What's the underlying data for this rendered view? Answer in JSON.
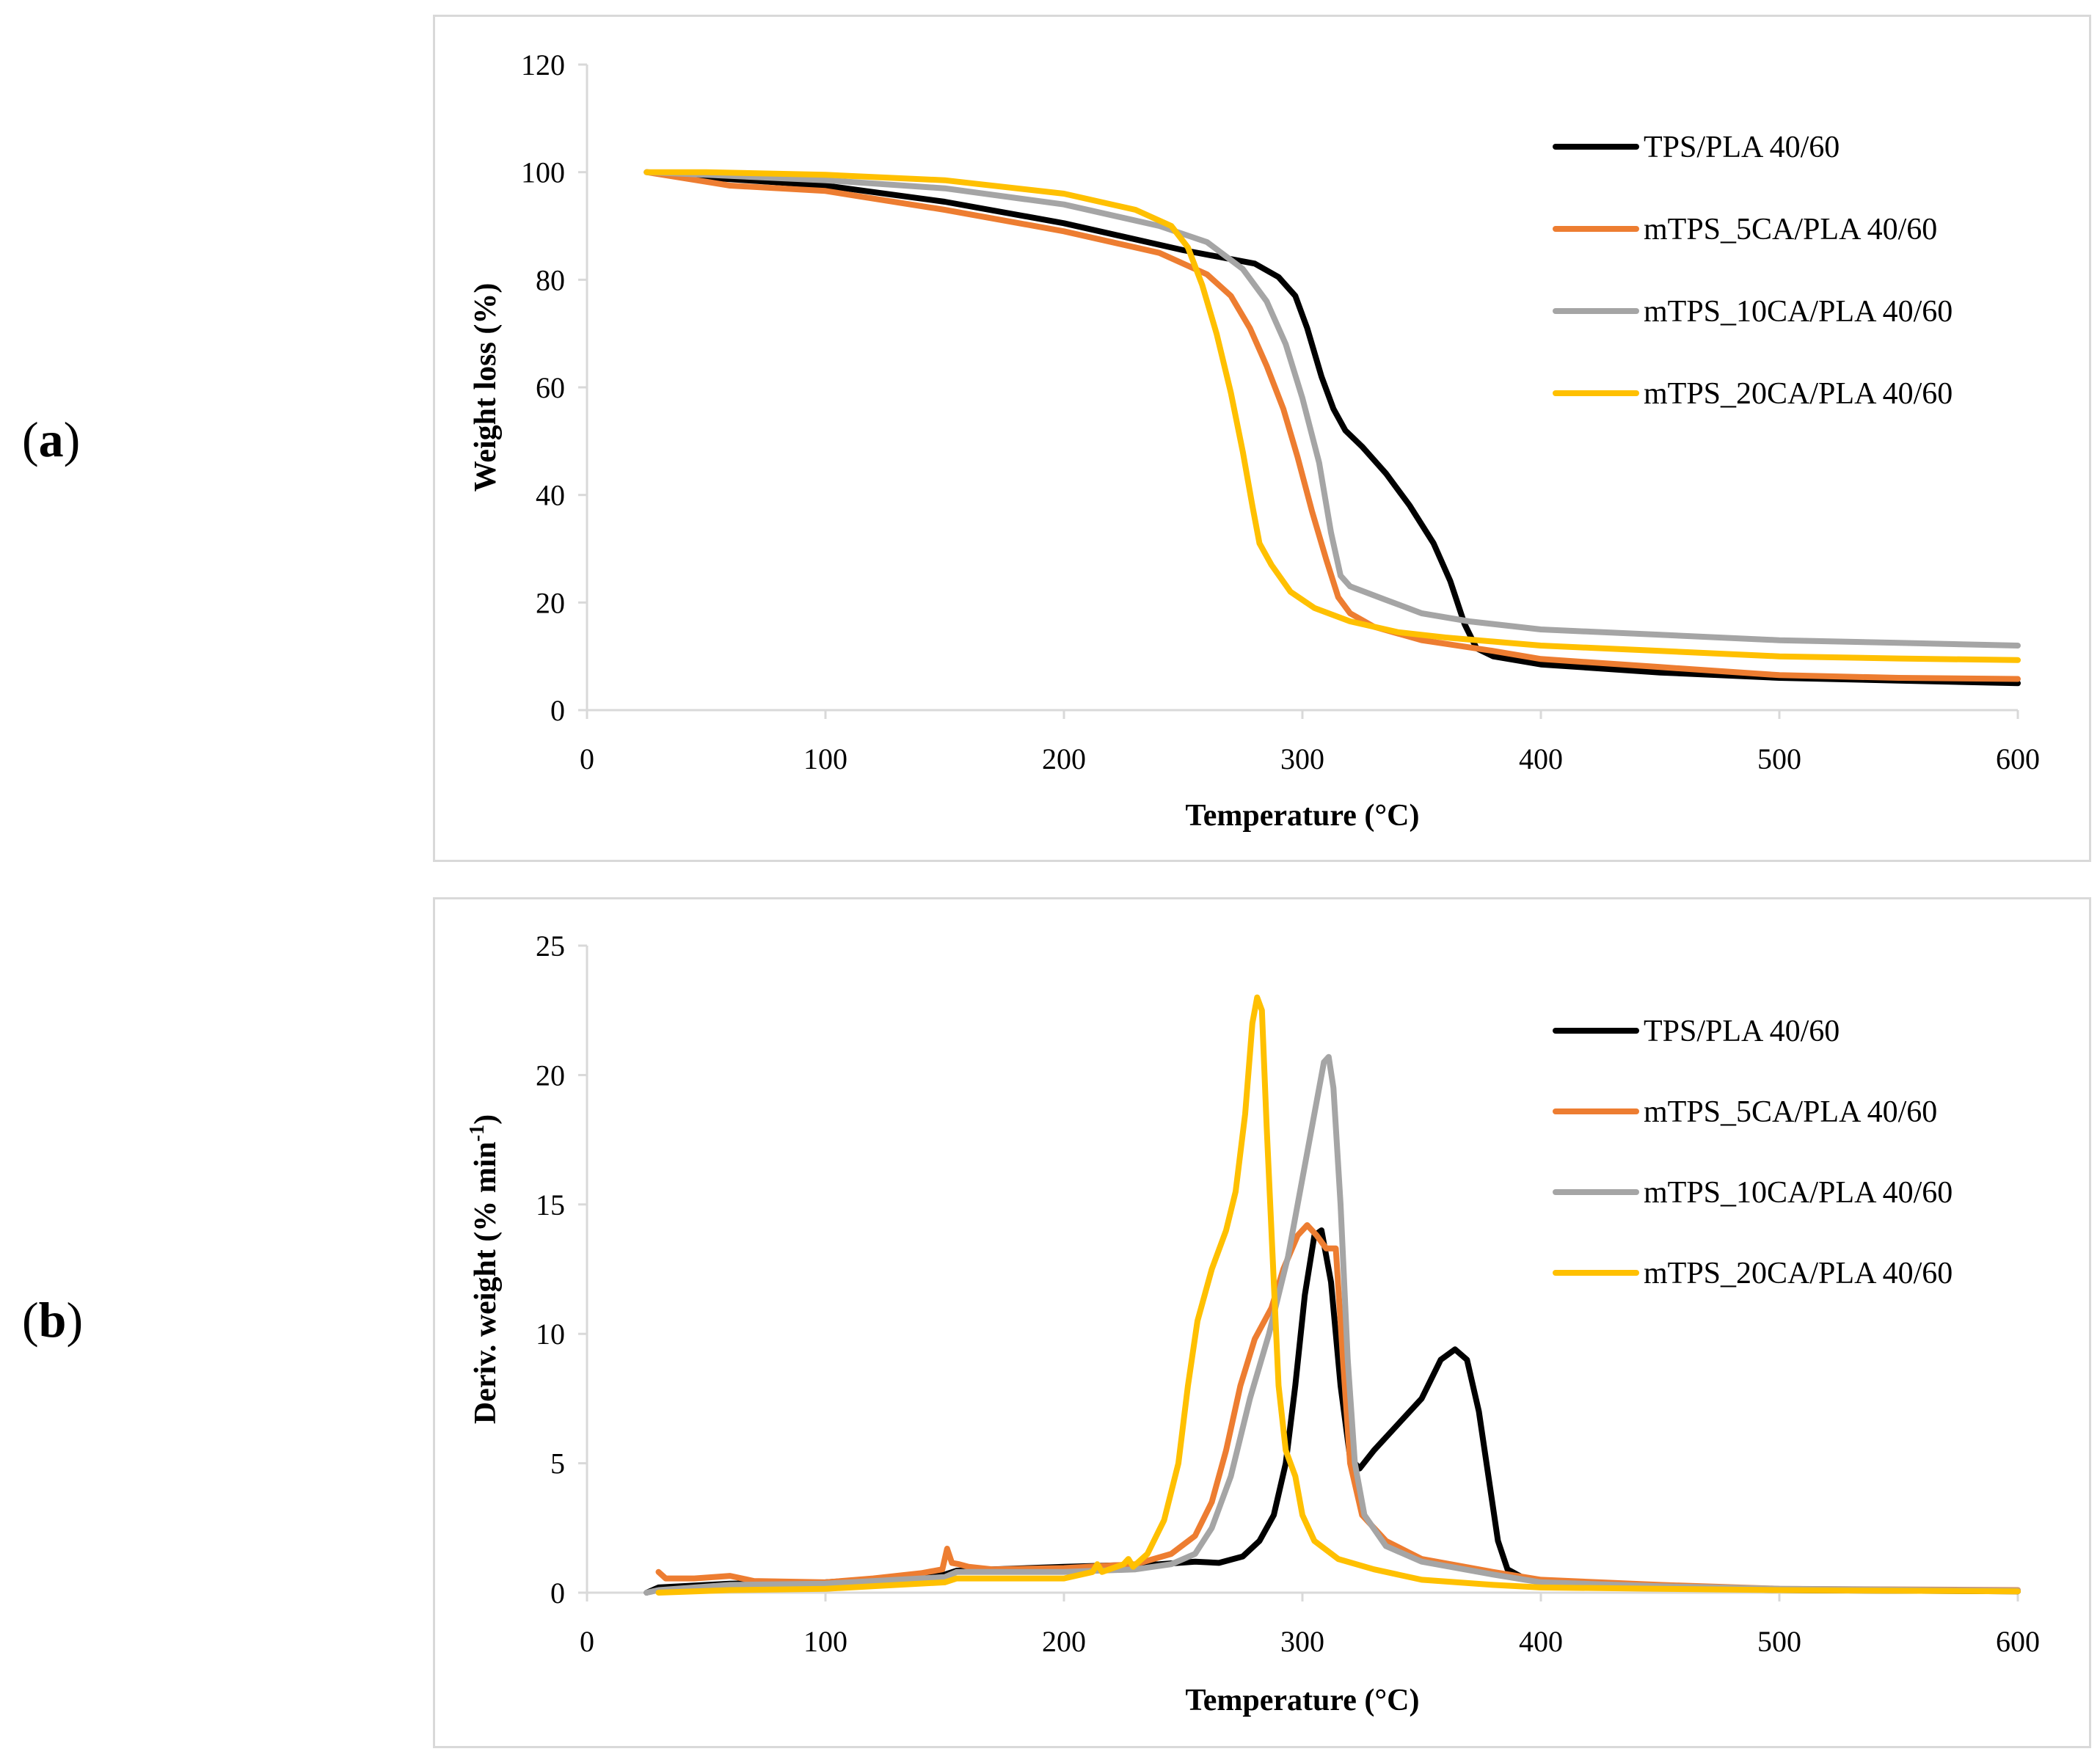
{
  "figure": {
    "panel_labels": [
      {
        "open": "(",
        "letter": "a",
        "close": ")"
      },
      {
        "open": "(",
        "letter": "b",
        "close": ")"
      }
    ]
  },
  "chart_data": [
    {
      "id": "a",
      "type": "line",
      "title": "",
      "xlabel": "Temperature (°C)",
      "ylabel": "Weight loss (%)",
      "xlim": [
        0,
        600
      ],
      "ylim": [
        0,
        120
      ],
      "xticks": [
        0,
        100,
        200,
        300,
        400,
        500,
        600
      ],
      "yticks": [
        0,
        20,
        40,
        60,
        80,
        100,
        120
      ],
      "xtick_labels": [
        "0",
        "100",
        "200",
        "300",
        "400",
        "500",
        "600"
      ],
      "ytick_labels": [
        "0",
        "20",
        "40",
        "60",
        "80",
        "100",
        "120"
      ],
      "grid": false,
      "legend_position": "top-right",
      "series": [
        {
          "name": "TPS/PLA 40/60",
          "color": "#000000",
          "points": [
            [
              25,
              100
            ],
            [
              50,
              99
            ],
            [
              100,
              97.5
            ],
            [
              150,
              94.5
            ],
            [
              200,
              90.5
            ],
            [
              250,
              85.5
            ],
            [
              280,
              83
            ],
            [
              290,
              80.5
            ],
            [
              297,
              77
            ],
            [
              302,
              71
            ],
            [
              308,
              62
            ],
            [
              313,
              56
            ],
            [
              318,
              52
            ],
            [
              325,
              49
            ],
            [
              335,
              44
            ],
            [
              345,
              38
            ],
            [
              355,
              31
            ],
            [
              362,
              24
            ],
            [
              368,
              16
            ],
            [
              373,
              11.5
            ],
            [
              380,
              10
            ],
            [
              400,
              8.5
            ],
            [
              450,
              7
            ],
            [
              500,
              6
            ],
            [
              550,
              5.5
            ],
            [
              600,
              5
            ]
          ]
        },
        {
          "name": "mTPS_5CA/PLA 40/60",
          "color": "#ED7D31",
          "points": [
            [
              25,
              100
            ],
            [
              60,
              97.5
            ],
            [
              100,
              96.5
            ],
            [
              150,
              93
            ],
            [
              200,
              89
            ],
            [
              240,
              85
            ],
            [
              260,
              81
            ],
            [
              270,
              77
            ],
            [
              278,
              71
            ],
            [
              285,
              64
            ],
            [
              292,
              56
            ],
            [
              298,
              47
            ],
            [
              304,
              37
            ],
            [
              310,
              28
            ],
            [
              315,
              21
            ],
            [
              320,
              18
            ],
            [
              330,
              15.5
            ],
            [
              350,
              13
            ],
            [
              380,
              11
            ],
            [
              400,
              9.5
            ],
            [
              450,
              8
            ],
            [
              500,
              6.5
            ],
            [
              550,
              6
            ],
            [
              600,
              5.8
            ]
          ]
        },
        {
          "name": "mTPS_10CA/PLA 40/60",
          "color": "#A5A5A5",
          "points": [
            [
              25,
              100
            ],
            [
              50,
              99.5
            ],
            [
              100,
              98.5
            ],
            [
              150,
              97
            ],
            [
              200,
              94
            ],
            [
              240,
              90
            ],
            [
              260,
              87
            ],
            [
              275,
              82
            ],
            [
              285,
              76
            ],
            [
              293,
              68
            ],
            [
              300,
              58
            ],
            [
              307,
              46
            ],
            [
              312,
              33
            ],
            [
              316,
              25
            ],
            [
              320,
              23
            ],
            [
              335,
              20.5
            ],
            [
              350,
              18
            ],
            [
              370,
              16.5
            ],
            [
              400,
              15
            ],
            [
              450,
              14
            ],
            [
              500,
              13
            ],
            [
              550,
              12.5
            ],
            [
              600,
              12
            ]
          ]
        },
        {
          "name": "mTPS_20CA/PLA 40/60",
          "color": "#FFC000",
          "points": [
            [
              25,
              100
            ],
            [
              50,
              100
            ],
            [
              100,
              99.5
            ],
            [
              150,
              98.5
            ],
            [
              200,
              96
            ],
            [
              230,
              93
            ],
            [
              245,
              90
            ],
            [
              252,
              86
            ],
            [
              258,
              79
            ],
            [
              264,
              70
            ],
            [
              270,
              59
            ],
            [
              275,
              48
            ],
            [
              279,
              38
            ],
            [
              282,
              31
            ],
            [
              287,
              27
            ],
            [
              295,
              22
            ],
            [
              305,
              19
            ],
            [
              320,
              16.5
            ],
            [
              340,
              14.5
            ],
            [
              360,
              13.5
            ],
            [
              400,
              12
            ],
            [
              450,
              11
            ],
            [
              500,
              10
            ],
            [
              550,
              9.6
            ],
            [
              600,
              9.3
            ]
          ]
        }
      ]
    },
    {
      "id": "b",
      "type": "line",
      "title": "",
      "xlabel": "Temperature (°C)",
      "ylabel": "Deriv. weight (% min",
      "ylabel_sup": "-1",
      "ylabel_end": ")",
      "xlim": [
        0,
        600
      ],
      "ylim": [
        0,
        25
      ],
      "xticks": [
        0,
        100,
        200,
        300,
        400,
        500,
        600
      ],
      "yticks": [
        0,
        5,
        10,
        15,
        20,
        25
      ],
      "xtick_labels": [
        "0",
        "100",
        "200",
        "300",
        "400",
        "500",
        "600"
      ],
      "ytick_labels": [
        "0",
        "5",
        "10",
        "15",
        "20",
        "25"
      ],
      "grid": false,
      "legend_position": "top-right",
      "series": [
        {
          "name": "TPS/PLA 40/60",
          "color": "#000000",
          "points": [
            [
              25,
              0
            ],
            [
              30,
              0.2
            ],
            [
              60,
              0.35
            ],
            [
              100,
              0.4
            ],
            [
              150,
              0.7
            ],
            [
              155,
              0.85
            ],
            [
              200,
              1
            ],
            [
              240,
              1.1
            ],
            [
              255,
              1.2
            ],
            [
              265,
              1.15
            ],
            [
              275,
              1.4
            ],
            [
              282,
              2
            ],
            [
              288,
              3
            ],
            [
              293,
              5
            ],
            [
              297,
              8
            ],
            [
              301,
              11.5
            ],
            [
              305,
              13.8
            ],
            [
              308,
              14
            ],
            [
              312,
              12
            ],
            [
              316,
              8
            ],
            [
              320,
              5.2
            ],
            [
              324,
              4.8
            ],
            [
              330,
              5.5
            ],
            [
              340,
              6.5
            ],
            [
              350,
              7.5
            ],
            [
              358,
              9
            ],
            [
              364,
              9.4
            ],
            [
              369,
              9
            ],
            [
              374,
              7
            ],
            [
              378,
              4.5
            ],
            [
              382,
              2
            ],
            [
              386,
              0.9
            ],
            [
              392,
              0.6
            ],
            [
              410,
              0.35
            ],
            [
              450,
              0.2
            ],
            [
              500,
              0.1
            ],
            [
              600,
              0.05
            ]
          ]
        },
        {
          "name": "mTPS_5CA/PLA 40/60",
          "color": "#ED7D31",
          "points": [
            [
              30,
              0.8
            ],
            [
              33,
              0.55
            ],
            [
              45,
              0.55
            ],
            [
              60,
              0.65
            ],
            [
              70,
              0.45
            ],
            [
              100,
              0.4
            ],
            [
              120,
              0.55
            ],
            [
              140,
              0.75
            ],
            [
              149,
              0.9
            ],
            [
              151,
              1.7
            ],
            [
              153,
              1.15
            ],
            [
              156,
              1.1
            ],
            [
              160,
              1
            ],
            [
              170,
              0.9
            ],
            [
              200,
              0.95
            ],
            [
              230,
              1.1
            ],
            [
              245,
              1.5
            ],
            [
              255,
              2.2
            ],
            [
              262,
              3.5
            ],
            [
              268,
              5.5
            ],
            [
              274,
              8
            ],
            [
              280,
              9.8
            ],
            [
              287,
              11
            ],
            [
              292,
              12.5
            ],
            [
              298,
              13.8
            ],
            [
              302,
              14.2
            ],
            [
              306,
              13.8
            ],
            [
              310,
              13.3
            ],
            [
              314,
              13.3
            ],
            [
              317,
              9
            ],
            [
              320,
              5
            ],
            [
              325,
              3
            ],
            [
              335,
              2
            ],
            [
              350,
              1.3
            ],
            [
              380,
              0.8
            ],
            [
              400,
              0.5
            ],
            [
              450,
              0.3
            ],
            [
              500,
              0.15
            ],
            [
              600,
              0.1
            ]
          ]
        },
        {
          "name": "mTPS_10CA/PLA 40/60",
          "color": "#A5A5A5",
          "points": [
            [
              25,
              0
            ],
            [
              30,
              0.1
            ],
            [
              60,
              0.3
            ],
            [
              100,
              0.35
            ],
            [
              150,
              0.6
            ],
            [
              155,
              0.8
            ],
            [
              200,
              0.8
            ],
            [
              230,
              0.9
            ],
            [
              245,
              1.1
            ],
            [
              255,
              1.5
            ],
            [
              262,
              2.5
            ],
            [
              270,
              4.5
            ],
            [
              278,
              7.5
            ],
            [
              286,
              10
            ],
            [
              294,
              13
            ],
            [
              300,
              16
            ],
            [
              305,
              18.5
            ],
            [
              309,
              20.5
            ],
            [
              311,
              20.7
            ],
            [
              313,
              19.5
            ],
            [
              316,
              15
            ],
            [
              319,
              9
            ],
            [
              322,
              5
            ],
            [
              326,
              3
            ],
            [
              335,
              1.8
            ],
            [
              350,
              1.2
            ],
            [
              380,
              0.7
            ],
            [
              400,
              0.4
            ],
            [
              450,
              0.25
            ],
            [
              500,
              0.15
            ],
            [
              600,
              0.08
            ]
          ]
        },
        {
          "name": "mTPS_20CA/PLA 40/60",
          "color": "#FFC000",
          "points": [
            [
              30,
              0
            ],
            [
              60,
              0.1
            ],
            [
              100,
              0.15
            ],
            [
              150,
              0.4
            ],
            [
              155,
              0.55
            ],
            [
              200,
              0.55
            ],
            [
              212,
              0.8
            ],
            [
              214,
              1.1
            ],
            [
              216,
              0.8
            ],
            [
              225,
              1.1
            ],
            [
              227,
              1.3
            ],
            [
              229,
              1
            ],
            [
              235,
              1.5
            ],
            [
              242,
              2.8
            ],
            [
              248,
              5
            ],
            [
              252,
              8
            ],
            [
              256,
              10.5
            ],
            [
              262,
              12.5
            ],
            [
              268,
              14
            ],
            [
              272,
              15.5
            ],
            [
              276,
              18.5
            ],
            [
              279,
              22
            ],
            [
              281,
              23
            ],
            [
              283,
              22.5
            ],
            [
              285,
              18
            ],
            [
              288,
              12
            ],
            [
              290,
              8
            ],
            [
              293,
              5.5
            ],
            [
              297,
              4.5
            ],
            [
              300,
              3
            ],
            [
              305,
              2
            ],
            [
              315,
              1.3
            ],
            [
              330,
              0.9
            ],
            [
              350,
              0.5
            ],
            [
              380,
              0.3
            ],
            [
              400,
              0.2
            ],
            [
              450,
              0.15
            ],
            [
              500,
              0.1
            ],
            [
              600,
              0.05
            ]
          ]
        }
      ]
    }
  ]
}
